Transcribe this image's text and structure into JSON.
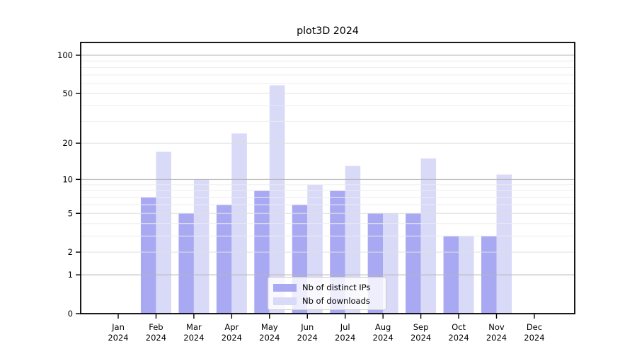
{
  "title": "plot3D 2024",
  "chart_data": {
    "type": "bar",
    "title": "plot3D 2024",
    "categories": [
      "Jan",
      "Feb",
      "Mar",
      "Apr",
      "May",
      "Jun",
      "Jul",
      "Aug",
      "Sep",
      "Oct",
      "Nov",
      "Dec"
    ],
    "year": "2024",
    "series": [
      {
        "name": "Nb of distinct IPs",
        "color": "#a9a9f3",
        "values": [
          0,
          7,
          5,
          6,
          8,
          6,
          8,
          5,
          5,
          3,
          3,
          0
        ]
      },
      {
        "name": "Nb of downloads",
        "color": "#d9d9f8",
        "values": [
          0,
          17,
          10,
          24,
          58,
          9,
          13,
          5,
          15,
          3,
          11,
          0
        ]
      }
    ],
    "y_scale": "log1p",
    "ylim": [
      0,
      126
    ],
    "y_ticks": [
      0,
      1,
      2,
      5,
      10,
      20,
      50,
      100
    ],
    "y_tick_labels": [
      "0",
      "1",
      "2",
      "5",
      "10",
      "20",
      "50",
      "100"
    ],
    "y_major_gridlines": [
      1,
      10,
      100
    ],
    "y_light_gridlines": [
      2,
      5,
      20,
      50
    ],
    "y_minor_gridlines": [
      3,
      4,
      6,
      7,
      8,
      9,
      30,
      40,
      60,
      70,
      80,
      90
    ],
    "grid": true,
    "legend_position": "lower center",
    "colors": {
      "bar_distinct_ips": "#a9a9f3",
      "bar_downloads": "#d9d9f8",
      "grid_major": "#b5b5b5",
      "grid_light": "#e0e0e0",
      "grid_minor": "#ededed",
      "spine": "#000000",
      "text": "#000000",
      "background": "#ffffff"
    }
  },
  "legend": {
    "items": [
      {
        "label": "Nb of distinct IPs"
      },
      {
        "label": "Nb of downloads"
      }
    ]
  }
}
